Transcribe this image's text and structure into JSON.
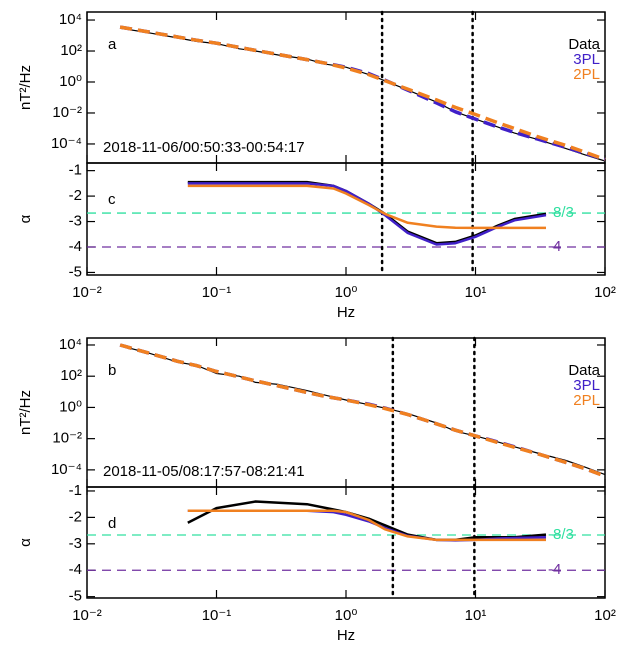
{
  "chart_data": [
    {
      "type": "line",
      "ylog": true,
      "xlog": true,
      "panel_label": "a",
      "annotation": "2018-11-06/00:50:33-00:54:17",
      "ylabel": "nT²/Hz",
      "legend": "upper right",
      "xlim": [
        0.01,
        100
      ],
      "xticks": [
        0.01,
        0.1,
        1,
        10,
        100
      ],
      "ylim": [
        5.9e-06,
        33000
      ],
      "yticks": [
        {
          "value": 10000,
          "label": "10⁴"
        },
        {
          "value": 100,
          "label": "10²"
        },
        {
          "value": 1,
          "label": "10⁰"
        },
        {
          "value": 0.01,
          "label": "10⁻²"
        },
        {
          "value": 0.0001,
          "label": "10⁻⁴"
        }
      ],
      "vlines": [
        1.9,
        9.5
      ],
      "x": [
        0.018,
        0.03,
        0.05,
        0.07,
        0.1,
        0.15,
        0.2,
        0.3,
        0.5,
        0.7,
        1,
        1.5,
        2,
        3,
        5,
        7,
        10,
        15,
        20,
        30,
        50,
        70,
        100
      ],
      "series": [
        {
          "name": "Data",
          "color": "#000000",
          "values": [
            3000,
            1500,
            700,
            420,
            300,
            140,
            100,
            55,
            30,
            14,
            9,
            3,
            1.2,
            0.3,
            0.05,
            0.012,
            0.004,
            0.0012,
            0.0005,
            0.0002,
            5e-05,
            2e-05,
            8e-06
          ]
        },
        {
          "name": "3PL",
          "color": "#4020c8",
          "dashed": true,
          "values": [
            3500,
            1700,
            800,
            500,
            320,
            170,
            110,
            60,
            28,
            16,
            9,
            3.5,
            1.3,
            0.3,
            0.045,
            0.012,
            0.004,
            0.0012,
            0.00055,
            0.00021,
            6e-05,
            2.5e-05,
            1e-05
          ]
        },
        {
          "name": "2PL",
          "color": "#f08020",
          "dashed": true,
          "values": [
            3500,
            1700,
            800,
            500,
            320,
            170,
            110,
            60,
            28,
            16,
            8,
            3,
            1.2,
            0.35,
            0.07,
            0.023,
            0.008,
            0.0023,
            0.001,
            0.0003,
            8e-05,
            3e-05,
            1e-05
          ]
        }
      ]
    },
    {
      "type": "line",
      "xlog": true,
      "panel_label": "c",
      "ylabel": "α",
      "xlabel": "Hz",
      "xlim": [
        0.01,
        100
      ],
      "xticks": [
        {
          "value": 0.01,
          "label": "10⁻²"
        },
        {
          "value": 0.1,
          "label": "10⁻¹"
        },
        {
          "value": 1,
          "label": "10⁰"
        },
        {
          "value": 10,
          "label": "10¹"
        },
        {
          "value": 100,
          "label": "10²"
        }
      ],
      "ylim": [
        -5.1,
        -0.7
      ],
      "yticks": [
        -1,
        -2,
        -3,
        -4,
        -5
      ],
      "hlines": [
        {
          "value": -2.667,
          "label": "-8/3",
          "color": "#30e0a0"
        },
        {
          "value": -4,
          "label": "-4",
          "color": "#7030a0"
        }
      ],
      "vlines": [
        1.9,
        9.5
      ],
      "x": [
        0.06,
        0.1,
        0.2,
        0.5,
        0.8,
        1,
        1.5,
        2,
        3,
        5,
        7,
        10,
        15,
        20,
        35
      ],
      "series": [
        {
          "name": "Data",
          "color": "#000000",
          "values": [
            -1.45,
            -1.45,
            -1.45,
            -1.45,
            -1.6,
            -1.8,
            -2.3,
            -2.7,
            -3.4,
            -3.85,
            -3.8,
            -3.55,
            -3.15,
            -2.9,
            -2.7
          ]
        },
        {
          "name": "3PL",
          "color": "#4020c8",
          "values": [
            -1.5,
            -1.5,
            -1.5,
            -1.5,
            -1.6,
            -1.8,
            -2.3,
            -2.75,
            -3.45,
            -3.9,
            -3.85,
            -3.6,
            -3.2,
            -2.95,
            -2.75
          ]
        },
        {
          "name": "2PL",
          "color": "#f08020",
          "values": [
            -1.6,
            -1.6,
            -1.6,
            -1.6,
            -1.7,
            -1.9,
            -2.35,
            -2.7,
            -3.05,
            -3.2,
            -3.24,
            -3.25,
            -3.25,
            -3.25,
            -3.25
          ]
        }
      ]
    },
    {
      "type": "line",
      "ylog": true,
      "xlog": true,
      "panel_label": "b",
      "annotation": "2018-11-05/08:17:57-08:21:41",
      "ylabel": "nT²/Hz",
      "legend": "upper right",
      "xlim": [
        0.01,
        100
      ],
      "xticks": [
        0.01,
        0.1,
        1,
        10,
        100
      ],
      "ylim": [
        8e-06,
        28000
      ],
      "yticks": [
        {
          "value": 10000,
          "label": "10⁴"
        },
        {
          "value": 100,
          "label": "10²"
        },
        {
          "value": 1,
          "label": "10⁰"
        },
        {
          "value": 0.01,
          "label": "10⁻²"
        },
        {
          "value": 0.0001,
          "label": "10⁻⁴"
        }
      ],
      "vlines": [
        2.3,
        9.8
      ],
      "x": [
        0.018,
        0.03,
        0.05,
        0.07,
        0.1,
        0.15,
        0.2,
        0.3,
        0.5,
        0.7,
        1,
        1.5,
        2,
        3,
        5,
        7,
        10,
        15,
        20,
        30,
        50,
        70,
        100
      ],
      "series": [
        {
          "name": "Data",
          "color": "#000000",
          "values": [
            9000,
            3000,
            800,
            500,
            150,
            100,
            40,
            30,
            12,
            6,
            3,
            1.5,
            0.9,
            0.4,
            0.1,
            0.03,
            0.015,
            0.006,
            0.003,
            0.0012,
            0.0004,
            0.00015,
            5e-05
          ]
        },
        {
          "name": "3PL",
          "color": "#4020c8",
          "dashed": true,
          "values": [
            10000,
            3000,
            900,
            480,
            200,
            90,
            50,
            24,
            9,
            5,
            3,
            1.6,
            0.9,
            0.35,
            0.09,
            0.035,
            0.015,
            0.006,
            0.003,
            0.0011,
            0.0003,
            0.00012,
            4e-05
          ]
        },
        {
          "name": "2PL",
          "color": "#f08020",
          "dashed": true,
          "values": [
            10000,
            3000,
            900,
            480,
            200,
            90,
            50,
            24,
            9,
            5,
            3,
            1.5,
            0.85,
            0.35,
            0.09,
            0.035,
            0.015,
            0.0055,
            0.0028,
            0.0011,
            0.0003,
            0.00012,
            4e-05
          ]
        }
      ]
    },
    {
      "type": "line",
      "xlog": true,
      "panel_label": "d",
      "ylabel": "α",
      "xlabel": "Hz",
      "xlim": [
        0.01,
        100
      ],
      "xticks": [
        {
          "value": 0.01,
          "label": "10⁻²"
        },
        {
          "value": 0.1,
          "label": "10⁻¹"
        },
        {
          "value": 1,
          "label": "10⁰"
        },
        {
          "value": 10,
          "label": "10¹"
        },
        {
          "value": 100,
          "label": "10²"
        }
      ],
      "ylim": [
        -5.05,
        -0.85
      ],
      "yticks": [
        -1,
        -2,
        -3,
        -4,
        -5
      ],
      "hlines": [
        {
          "value": -2.667,
          "label": "-8/3",
          "color": "#30e0a0"
        },
        {
          "value": -4,
          "label": "-4",
          "color": "#7030a0"
        }
      ],
      "vlines": [
        2.3,
        9.8
      ],
      "x": [
        0.06,
        0.1,
        0.2,
        0.5,
        0.8,
        1,
        1.5,
        2,
        3,
        5,
        7,
        10,
        15,
        20,
        35
      ],
      "series": [
        {
          "name": "Data",
          "color": "#000000",
          "values": [
            -2.2,
            -1.65,
            -1.4,
            -1.5,
            -1.7,
            -1.8,
            -2.05,
            -2.3,
            -2.65,
            -2.85,
            -2.85,
            -2.75,
            -2.75,
            -2.75,
            -2.65
          ]
        },
        {
          "name": "3PL",
          "color": "#4020c8",
          "values": [
            -1.75,
            -1.75,
            -1.75,
            -1.75,
            -1.8,
            -1.9,
            -2.15,
            -2.4,
            -2.7,
            -2.85,
            -2.87,
            -2.85,
            -2.8,
            -2.78,
            -2.75
          ]
        },
        {
          "name": "2PL",
          "color": "#f08020",
          "values": [
            -1.75,
            -1.75,
            -1.75,
            -1.75,
            -1.75,
            -1.8,
            -2.1,
            -2.45,
            -2.72,
            -2.85,
            -2.85,
            -2.85,
            -2.85,
            -2.85,
            -2.85
          ]
        }
      ]
    }
  ]
}
